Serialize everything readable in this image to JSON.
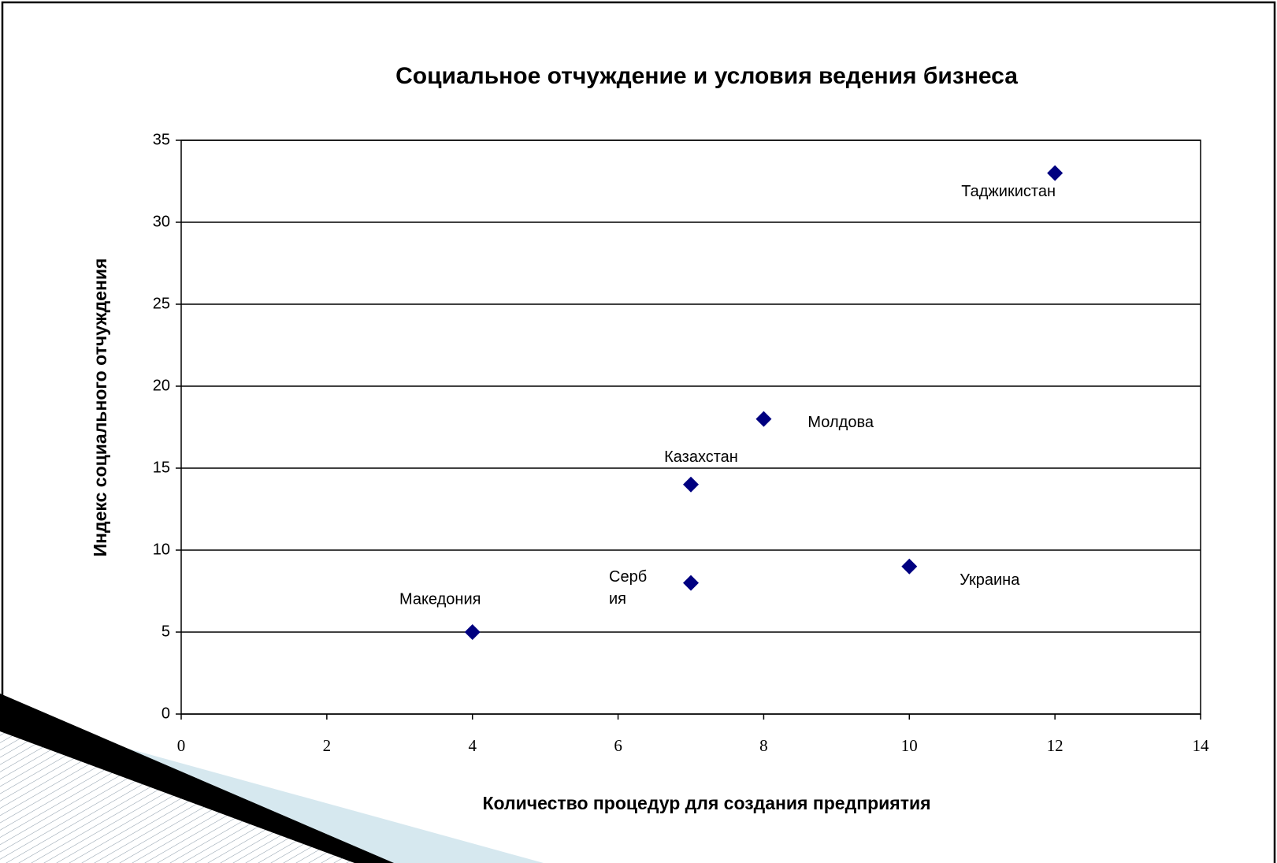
{
  "chart_data": {
    "type": "scatter",
    "title": "Социальное отчуждение и условия ведения бизнеса",
    "x_label": "Количество процедур для создания предприятия",
    "y_label": "Индекс социального отчуждения",
    "labels": [
      "Македония",
      "Сербия",
      "Казахстан",
      "Молдова",
      "Украина",
      "Таджикистан"
    ],
    "x": [
      4,
      7,
      7,
      8,
      10,
      12
    ],
    "values": [
      5,
      8,
      14,
      18,
      9,
      33
    ],
    "color": "#000080",
    "xlim": [
      0,
      14
    ],
    "xticks": [
      0,
      2,
      4,
      6,
      8,
      10,
      12,
      14
    ],
    "ylim": [
      0,
      35
    ],
    "yticks": [
      0,
      5,
      10,
      15,
      20,
      25,
      30,
      35
    ],
    "grid": true
  }
}
